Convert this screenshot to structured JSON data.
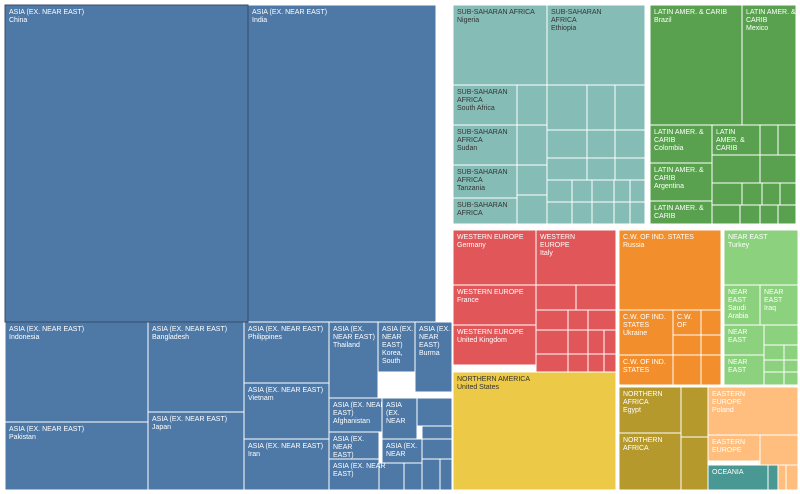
{
  "chart_data": {
    "type": "treemap",
    "colors": {
      "ASIA (EX. NEAR EAST)": "#4e79a7",
      "SUB-SAHARAN AFRICA": "#86bcb6",
      "LATIN AMER. & CARIB": "#59a14f",
      "WESTERN EUROPE": "#e15759",
      "C.W. OF IND. STATES": "#f28e2b",
      "NEAR EAST": "#8cd17d",
      "NORTHERN AMERICA": "#edc948",
      "NORTHERN AFRICA": "#b6992d",
      "EASTERN EUROPE": "#ffbe7d",
      "OCEANIA": "#499894"
    },
    "label_text_color": {
      "ASIA (EX. NEAR EAST)": "light",
      "SUB-SAHARAN AFRICA": "dark",
      "LATIN AMER. & CARIB": "light",
      "WESTERN EUROPE": "light",
      "C.W. OF IND. STATES": "light",
      "NEAR EAST": "light",
      "NORTHERN AMERICA": "dark",
      "NORTHERN AFRICA": "light",
      "EASTERN EUROPE": "light",
      "OCEANIA": "light"
    },
    "labeled_cells": [
      {
        "region": "ASIA (EX. NEAR EAST)",
        "country": "China",
        "region_lines": [
          "ASIA (EX. NEAR EAST)"
        ]
      },
      {
        "region": "ASIA (EX. NEAR EAST)",
        "country": "India",
        "region_lines": [
          "ASIA (EX. NEAR EAST)"
        ]
      },
      {
        "region": "ASIA (EX. NEAR EAST)",
        "country": "Indonesia",
        "region_lines": [
          "ASIA (EX. NEAR EAST)"
        ]
      },
      {
        "region": "ASIA (EX. NEAR EAST)",
        "country": "Bangladesh",
        "region_lines": [
          "ASIA (EX. NEAR EAST)"
        ]
      },
      {
        "region": "ASIA (EX. NEAR EAST)",
        "country": "Pakistan",
        "region_lines": [
          "ASIA (EX. NEAR EAST)"
        ]
      },
      {
        "region": "ASIA (EX. NEAR EAST)",
        "country": "Japan",
        "region_lines": [
          "ASIA (EX. NEAR EAST)"
        ]
      },
      {
        "region": "ASIA (EX. NEAR EAST)",
        "country": "Philippines",
        "region_lines": [
          "ASIA (EX. NEAR EAST)"
        ]
      },
      {
        "region": "ASIA (EX. NEAR EAST)",
        "country": "Vietnam",
        "region_lines": [
          "ASIA (EX. NEAR EAST)"
        ]
      },
      {
        "region": "ASIA (EX. NEAR EAST)",
        "country": "Iran",
        "region_lines": [
          "ASIA (EX. NEAR EAST)"
        ]
      },
      {
        "region": "ASIA (EX. NEAR EAST)",
        "country": "Thailand",
        "region_lines": [
          "ASIA (EX.",
          "NEAR EAST)"
        ]
      },
      {
        "region": "ASIA (EX. NEAR EAST)",
        "country": "Korea, South",
        "region_lines": [
          "ASIA (EX.",
          "NEAR",
          "EAST)"
        ],
        "country_lines": [
          "Korea,",
          "South"
        ]
      },
      {
        "region": "ASIA (EX. NEAR EAST)",
        "country": "Burma",
        "region_lines": [
          "ASIA (EX.",
          "NEAR",
          "EAST)"
        ]
      },
      {
        "region": "ASIA (EX. NEAR EAST)",
        "country": "Afghanistan",
        "region_lines": [
          "ASIA (EX. NEAR",
          "EAST)"
        ]
      },
      {
        "region": "ASIA (EX. NEAR EAST)",
        "country": "",
        "region_lines": [
          "ASIA (EX.",
          "NEAR",
          "EAST)"
        ]
      },
      {
        "region": "ASIA (EX. NEAR EAST)",
        "country": "",
        "region_lines": [
          "ASIA",
          "(EX.",
          "NEAR"
        ]
      },
      {
        "region": "ASIA (EX. NEAR EAST)",
        "country": "",
        "region_lines": [
          "ASIA (EX. NEAR",
          "EAST)"
        ]
      },
      {
        "region": "ASIA (EX. NEAR EAST)",
        "country": "",
        "region_lines": [
          "ASIA (EX.",
          "NEAR"
        ]
      },
      {
        "region": "SUB-SAHARAN AFRICA",
        "country": "Nigeria",
        "region_lines": [
          "SUB-SAHARAN AFRICA"
        ]
      },
      {
        "region": "SUB-SAHARAN AFRICA",
        "country": "Ethiopia",
        "region_lines": [
          "SUB-SAHARAN",
          "AFRICA"
        ]
      },
      {
        "region": "SUB-SAHARAN AFRICA",
        "country": "South Africa",
        "region_lines": [
          "SUB-SAHARAN",
          "AFRICA"
        ]
      },
      {
        "region": "SUB-SAHARAN AFRICA",
        "country": "Sudan",
        "region_lines": [
          "SUB-SAHARAN",
          "AFRICA"
        ]
      },
      {
        "region": "SUB-SAHARAN AFRICA",
        "country": "Tanzania",
        "region_lines": [
          "SUB-SAHARAN",
          "AFRICA"
        ]
      },
      {
        "region": "SUB-SAHARAN AFRICA",
        "country": "",
        "region_lines": [
          "SUB-SAHARAN",
          "AFRICA"
        ]
      },
      {
        "region": "LATIN AMER. & CARIB",
        "country": "Brazil",
        "region_lines": [
          "LATIN AMER. & CARIB"
        ]
      },
      {
        "region": "LATIN AMER. & CARIB",
        "country": "Mexico",
        "region_lines": [
          "LATIN AMER. &",
          "CARIB"
        ]
      },
      {
        "region": "LATIN AMER. & CARIB",
        "country": "Colombia",
        "region_lines": [
          "LATIN AMER. &",
          "CARIB"
        ]
      },
      {
        "region": "LATIN AMER. & CARIB",
        "country": "",
        "region_lines": [
          "LATIN",
          "AMER. &",
          "CARIB"
        ]
      },
      {
        "region": "LATIN AMER. & CARIB",
        "country": "Argentina",
        "region_lines": [
          "LATIN AMER. &",
          "CARIB"
        ]
      },
      {
        "region": "LATIN AMER. & CARIB",
        "country": "",
        "region_lines": [
          "LATIN AMER. &",
          "CARIB"
        ]
      },
      {
        "region": "WESTERN EUROPE",
        "country": "Germany",
        "region_lines": [
          "WESTERN EUROPE"
        ]
      },
      {
        "region": "WESTERN EUROPE",
        "country": "Italy",
        "region_lines": [
          "WESTERN",
          "EUROPE"
        ]
      },
      {
        "region": "WESTERN EUROPE",
        "country": "France",
        "region_lines": [
          "WESTERN EUROPE"
        ]
      },
      {
        "region": "WESTERN EUROPE",
        "country": "United Kingdom",
        "region_lines": [
          "WESTERN EUROPE"
        ]
      },
      {
        "region": "C.W. OF IND. STATES",
        "country": "Russia",
        "region_lines": [
          "C.W. OF IND. STATES"
        ]
      },
      {
        "region": "C.W. OF IND. STATES",
        "country": "Ukraine",
        "region_lines": [
          "C.W. OF IND.",
          "STATES"
        ]
      },
      {
        "region": "C.W. OF IND. STATES",
        "country": "",
        "region_lines": [
          "C.W.",
          "OF"
        ]
      },
      {
        "region": "C.W. OF IND. STATES",
        "country": "",
        "region_lines": [
          "C.W. OF IND.",
          "STATES"
        ]
      },
      {
        "region": "NEAR EAST",
        "country": "Turkey",
        "region_lines": [
          "NEAR EAST"
        ]
      },
      {
        "region": "NEAR EAST",
        "country": "Saudi Arabia",
        "region_lines": [
          "NEAR",
          "EAST"
        ],
        "country_lines": [
          "Saudi",
          "Arabia"
        ]
      },
      {
        "region": "NEAR EAST",
        "country": "Iraq",
        "region_lines": [
          "NEAR",
          "EAST"
        ]
      },
      {
        "region": "NEAR EAST",
        "country": "",
        "region_lines": [
          "NEAR",
          "EAST"
        ]
      },
      {
        "region": "NEAR EAST",
        "country": "",
        "region_lines": [
          "NEAR",
          "EAST"
        ]
      },
      {
        "region": "NORTHERN AMERICA",
        "country": "United States",
        "region_lines": [
          "NORTHERN AMERICA"
        ]
      },
      {
        "region": "NORTHERN AFRICA",
        "country": "Egypt",
        "region_lines": [
          "NORTHERN",
          "AFRICA"
        ]
      },
      {
        "region": "NORTHERN AFRICA",
        "country": "",
        "region_lines": [
          "NORTHERN",
          "AFRICA"
        ]
      },
      {
        "region": "EASTERN EUROPE",
        "country": "Poland",
        "region_lines": [
          "EASTERN",
          "EUROPE"
        ]
      },
      {
        "region": "EASTERN EUROPE",
        "country": "",
        "region_lines": [
          "EASTERN",
          "EUROPE"
        ]
      },
      {
        "region": "OCEANIA",
        "country": "",
        "region_lines": [
          "OCEANIA"
        ]
      }
    ]
  }
}
